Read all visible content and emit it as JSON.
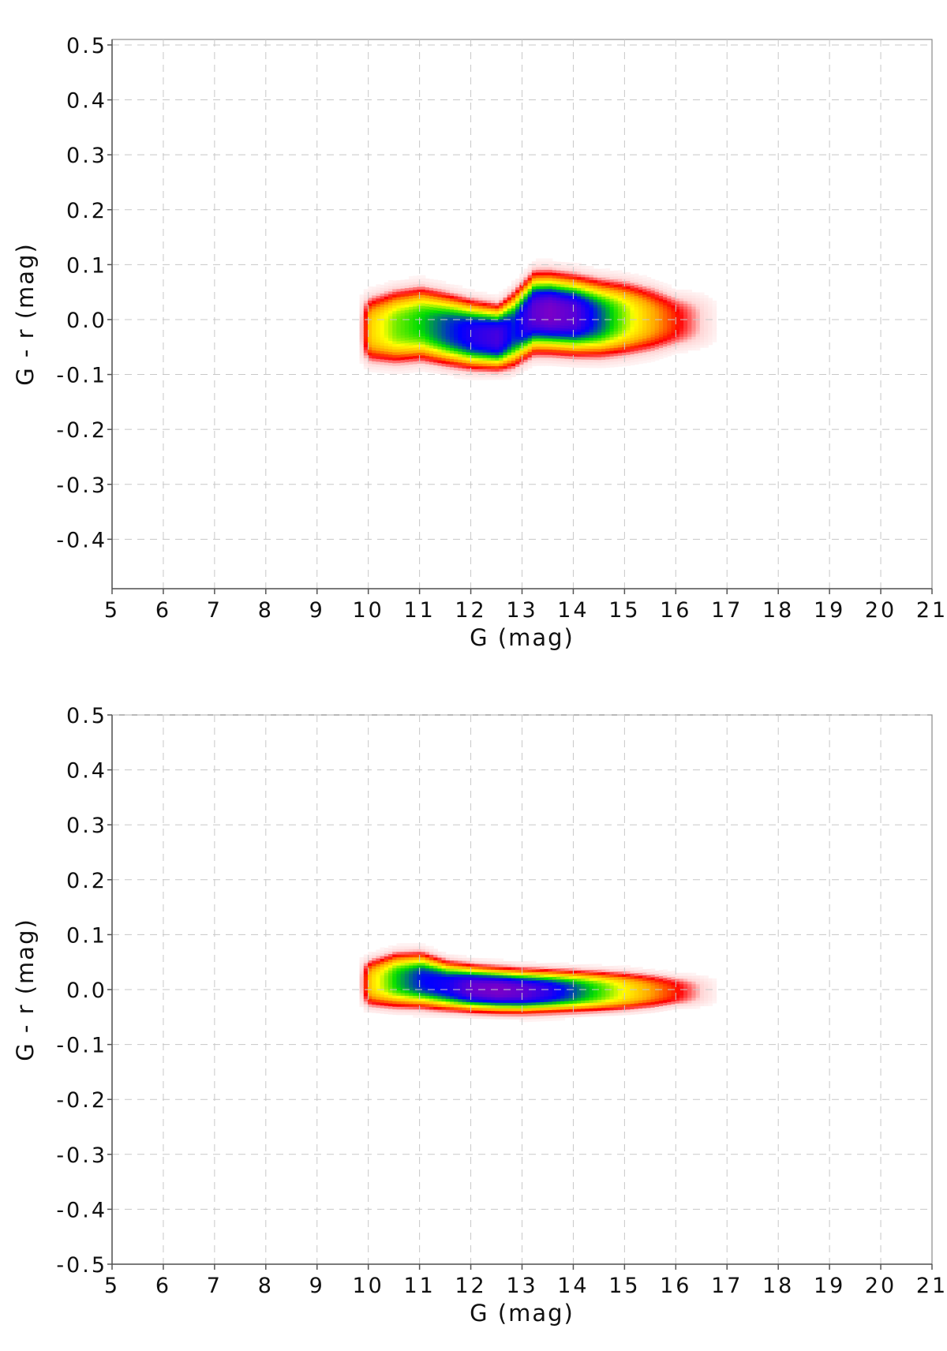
{
  "chart_data": [
    {
      "type": "heatmap",
      "title": "",
      "xlabel": "G (mag)",
      "ylabel": "G - r  (mag)",
      "xlim": [
        5,
        21
      ],
      "ylim": [
        -0.49,
        0.51
      ],
      "xticks": [
        5,
        6,
        7,
        8,
        9,
        10,
        11,
        12,
        13,
        14,
        15,
        16,
        17,
        18,
        19,
        20,
        21
      ],
      "xtick_labels": [
        "5",
        "6",
        "7",
        "8",
        "9",
        "10",
        "11",
        "12",
        "13",
        "14",
        "15",
        "16",
        "17",
        "18",
        "19",
        "20",
        "21"
      ],
      "yticks": [
        0.5,
        0.4,
        0.3,
        0.2,
        0.1,
        0.0,
        -0.1,
        -0.2,
        -0.3,
        -0.4
      ],
      "ytick_labels": [
        "0.5",
        "0.4",
        "0.3",
        "0.2",
        "0.1",
        "0.0",
        "-0.1",
        "-0.2",
        "-0.3",
        "-0.4"
      ],
      "grid": true,
      "colormap": [
        "#ffffff",
        "#ffd6d6",
        "#ff0000",
        "#ffa500",
        "#ffff00",
        "#00dd00",
        "#0000ff",
        "#7a00c8"
      ],
      "density_ridge": {
        "x": [
          10.0,
          10.5,
          11.0,
          11.5,
          12.0,
          12.5,
          12.8,
          13.2,
          13.5,
          14.0,
          14.5,
          15.0,
          15.5,
          16.0
        ],
        "center": [
          -0.02,
          -0.015,
          -0.01,
          -0.02,
          -0.03,
          -0.035,
          -0.02,
          0.01,
          0.01,
          0.005,
          0.0,
          0.0,
          -0.002,
          -0.005
        ],
        "half_width": [
          0.055,
          0.06,
          0.06,
          0.058,
          0.055,
          0.052,
          0.06,
          0.065,
          0.065,
          0.064,
          0.062,
          0.06,
          0.055,
          0.045
        ],
        "peak_density": [
          0.5,
          0.65,
          0.72,
          0.82,
          0.9,
          0.94,
          0.84,
          0.97,
          1.0,
          0.96,
          0.8,
          0.62,
          0.45,
          0.3
        ]
      }
    },
    {
      "type": "heatmap",
      "title": "",
      "xlabel": "G (mag)",
      "ylabel": "G - r  (mag)",
      "xlim": [
        5,
        21
      ],
      "ylim": [
        -0.5,
        0.5
      ],
      "xticks": [
        5,
        6,
        7,
        8,
        9,
        10,
        11,
        12,
        13,
        14,
        15,
        16,
        17,
        18,
        19,
        20,
        21
      ],
      "xtick_labels": [
        "5",
        "6",
        "7",
        "8",
        "9",
        "10",
        "11",
        "12",
        "13",
        "14",
        "15",
        "16",
        "17",
        "18",
        "19",
        "20",
        "21"
      ],
      "yticks": [
        0.5,
        0.4,
        0.3,
        0.2,
        0.1,
        0.0,
        -0.1,
        -0.2,
        -0.3,
        -0.4,
        -0.5
      ],
      "ytick_labels": [
        "0.5",
        "0.4",
        "0.3",
        "0.2",
        "0.1",
        "0.0",
        "-0.1",
        "-0.2",
        "-0.3",
        "-0.4",
        "-0.5"
      ],
      "grid": true,
      "colormap": [
        "#ffffff",
        "#ffd6d6",
        "#ff0000",
        "#ffa500",
        "#ffff00",
        "#00dd00",
        "#0000ff",
        "#7a00c8"
      ],
      "density_ridge": {
        "x": [
          10.0,
          10.5,
          11.0,
          11.5,
          12.0,
          12.5,
          13.0,
          13.5,
          14.0,
          14.5,
          15.0,
          15.5,
          16.0
        ],
        "center": [
          0.01,
          0.015,
          0.015,
          0.005,
          0.0,
          -0.003,
          -0.005,
          -0.005,
          -0.005,
          -0.005,
          -0.005,
          -0.005,
          -0.005
        ],
        "half_width": [
          0.04,
          0.045,
          0.045,
          0.04,
          0.038,
          0.037,
          0.036,
          0.035,
          0.034,
          0.033,
          0.032,
          0.03,
          0.026
        ],
        "peak_density": [
          0.5,
          0.72,
          0.85,
          0.88,
          0.98,
          1.0,
          0.97,
          0.9,
          0.8,
          0.68,
          0.55,
          0.42,
          0.3
        ]
      }
    }
  ]
}
